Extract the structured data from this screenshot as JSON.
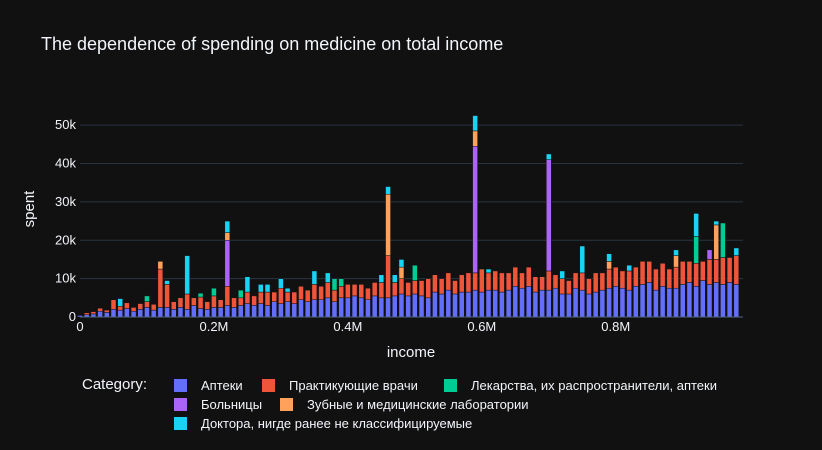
{
  "chart_data": {
    "type": "bar",
    "barmode": "stack",
    "title": "The dependence of spending on medicine on total income",
    "xlabel": "income",
    "ylabel": "spent",
    "xlim": [
      0,
      990000
    ],
    "ylim": [
      0,
      54000
    ],
    "x_ticks": [
      {
        "value": 0,
        "label": "0"
      },
      {
        "value": 200000,
        "label": "0.2M"
      },
      {
        "value": 400000,
        "label": "0.4M"
      },
      {
        "value": 600000,
        "label": "0.6M"
      },
      {
        "value": 800000,
        "label": "0.8M"
      }
    ],
    "y_ticks": [
      {
        "value": 0,
        "label": "0"
      },
      {
        "value": 10000,
        "label": "10k"
      },
      {
        "value": 20000,
        "label": "20k"
      },
      {
        "value": 30000,
        "label": "30k"
      },
      {
        "value": 40000,
        "label": "40k"
      },
      {
        "value": 50000,
        "label": "50k"
      }
    ],
    "grid": true,
    "legend_title": "Category:",
    "legend_position": "bottom",
    "bar_width": 9000,
    "x": [
      0,
      10000,
      20000,
      30000,
      40000,
      50000,
      60000,
      70000,
      80000,
      90000,
      100000,
      110000,
      120000,
      130000,
      140000,
      150000,
      160000,
      170000,
      180000,
      190000,
      200000,
      210000,
      220000,
      230000,
      240000,
      250000,
      260000,
      270000,
      280000,
      290000,
      300000,
      310000,
      320000,
      330000,
      340000,
      350000,
      360000,
      370000,
      380000,
      390000,
      400000,
      410000,
      420000,
      430000,
      440000,
      450000,
      460000,
      470000,
      480000,
      490000,
      500000,
      510000,
      520000,
      530000,
      540000,
      550000,
      560000,
      570000,
      580000,
      590000,
      600000,
      610000,
      620000,
      630000,
      640000,
      650000,
      660000,
      670000,
      680000,
      690000,
      700000,
      710000,
      720000,
      730000,
      740000,
      750000,
      760000,
      770000,
      780000,
      790000,
      800000,
      810000,
      820000,
      830000,
      840000,
      850000,
      860000,
      870000,
      880000,
      890000,
      900000,
      910000,
      920000,
      930000,
      940000,
      950000,
      960000,
      970000,
      980000
    ],
    "series": [
      {
        "name": "Аптеки",
        "color": "#636efa",
        "values": [
          400,
          600,
          800,
          1500,
          1200,
          2000,
          1800,
          2200,
          1500,
          2000,
          2500,
          1800,
          2500,
          2500,
          2000,
          2500,
          2000,
          3000,
          2200,
          2000,
          2500,
          2500,
          3000,
          2500,
          3000,
          3500,
          3000,
          3500,
          3000,
          4000,
          3500,
          4000,
          3500,
          4500,
          4000,
          4500,
          4500,
          5000,
          4000,
          5000,
          5000,
          5500,
          5000,
          4500,
          5500,
          5000,
          5000,
          5500,
          6000,
          5500,
          6000,
          5500,
          5000,
          6500,
          6000,
          7000,
          6000,
          6500,
          6500,
          7000,
          6500,
          7000,
          7000,
          6500,
          7000,
          8000,
          7500,
          8000,
          6500,
          7000,
          7000,
          7500,
          6000,
          6000,
          7500,
          7000,
          6000,
          6500,
          7000,
          7500,
          8000,
          7500,
          7000,
          8000,
          8500,
          9000,
          7000,
          8000,
          7500,
          7500,
          8500,
          9000,
          8000,
          9500,
          8500,
          9000,
          8500,
          9000,
          8500
        ]
      },
      {
        "name": "Практикующие врачи",
        "color": "#ef553b",
        "values": [
          0,
          500,
          600,
          800,
          600,
          2500,
          1000,
          1500,
          1000,
          1500,
          1500,
          1500,
          10000,
          6000,
          2000,
          2500,
          4000,
          2000,
          3000,
          2000,
          3000,
          2000,
          5000,
          2500,
          2000,
          3000,
          2500,
          3000,
          3500,
          2500,
          4000,
          2500,
          3000,
          3500,
          3000,
          4000,
          3500,
          4000,
          3000,
          3000,
          3500,
          3000,
          3500,
          3000,
          3500,
          4000,
          11000,
          3500,
          4000,
          3500,
          3500,
          4000,
          5000,
          4500,
          4000,
          4500,
          3500,
          4500,
          5000,
          4500,
          6000,
          4500,
          5000,
          5000,
          4500,
          5000,
          4000,
          5000,
          4000,
          3500,
          5000,
          3500,
          4000,
          3500,
          4000,
          4500,
          4000,
          5000,
          4500,
          5000,
          5000,
          4500,
          5000,
          5000,
          6000,
          5500,
          5500,
          6000,
          5000,
          5500,
          6000,
          5500,
          6000,
          5000,
          6500,
          6000,
          7000,
          6500,
          7500
        ]
      },
      {
        "name": "Лекарства, их распространители, аптеки",
        "color": "#00cc96",
        "values": [
          0,
          0,
          0,
          0,
          0,
          0,
          0,
          0,
          0,
          0,
          1500,
          0,
          0,
          0,
          0,
          0,
          0,
          0,
          1000,
          0,
          2000,
          0,
          0,
          0,
          2000,
          0,
          0,
          0,
          0,
          0,
          0,
          0,
          0,
          0,
          0,
          0,
          0,
          0,
          3000,
          2000,
          0,
          0,
          0,
          0,
          0,
          0,
          0,
          0,
          0,
          0,
          4000,
          0,
          0,
          0,
          0,
          0,
          0,
          0,
          0,
          0,
          0,
          0,
          0,
          0,
          0,
          0,
          0,
          0,
          0,
          0,
          0,
          0,
          0,
          0,
          0,
          0,
          0,
          0,
          0,
          0,
          0,
          0,
          0,
          0,
          0,
          0,
          0,
          0,
          0,
          0,
          0,
          0,
          7000,
          0,
          0,
          0,
          9000,
          0,
          0
        ]
      },
      {
        "name": "Больницы",
        "color": "#ab63fa",
        "values": [
          0,
          0,
          0,
          0,
          0,
          0,
          0,
          0,
          0,
          0,
          0,
          0,
          0,
          0,
          0,
          0,
          0,
          0,
          0,
          0,
          0,
          0,
          12000,
          0,
          0,
          0,
          0,
          0,
          0,
          0,
          0,
          0,
          0,
          0,
          0,
          0,
          0,
          0,
          0,
          0,
          0,
          0,
          0,
          0,
          0,
          0,
          0,
          0,
          0,
          0,
          0,
          0,
          0,
          0,
          0,
          0,
          0,
          0,
          0,
          33000,
          0,
          0,
          0,
          0,
          0,
          0,
          0,
          0,
          0,
          0,
          29000,
          0,
          0,
          0,
          0,
          0,
          0,
          0,
          0,
          0,
          0,
          0,
          0,
          0,
          0,
          0,
          0,
          0,
          0,
          0,
          0,
          0,
          0,
          0,
          2500,
          0,
          0,
          0,
          0
        ]
      },
      {
        "name": "Зубные и медицинские лаборатории",
        "color": "#ffa15a",
        "values": [
          0,
          0,
          0,
          0,
          0,
          0,
          0,
          0,
          0,
          0,
          0,
          0,
          2000,
          0,
          0,
          0,
          0,
          0,
          0,
          0,
          0,
          0,
          2000,
          0,
          0,
          0,
          0,
          0,
          0,
          0,
          0,
          0,
          0,
          0,
          0,
          0,
          0,
          0,
          0,
          0,
          0,
          0,
          0,
          0,
          0,
          0,
          16000,
          0,
          3000,
          0,
          0,
          0,
          0,
          0,
          0,
          0,
          0,
          0,
          0,
          4000,
          0,
          0,
          0,
          0,
          0,
          0,
          0,
          0,
          0,
          0,
          0,
          0,
          0,
          0,
          0,
          0,
          0,
          0,
          0,
          2000,
          0,
          0,
          0,
          0,
          0,
          0,
          0,
          0,
          0,
          3000,
          0,
          0,
          0,
          0,
          0,
          9000,
          0,
          0,
          0
        ]
      },
      {
        "name": "Доктора, нигде ранее не классифицируемые",
        "color": "#19d3f3",
        "values": [
          0,
          0,
          0,
          0,
          0,
          0,
          2000,
          0,
          0,
          0,
          0,
          0,
          0,
          1000,
          0,
          0,
          10000,
          0,
          0,
          0,
          0,
          0,
          3000,
          0,
          0,
          4000,
          0,
          2000,
          2000,
          0,
          2500,
          1000,
          0,
          0,
          0,
          3500,
          0,
          2500,
          0,
          0,
          0,
          0,
          0,
          0,
          0,
          2000,
          2000,
          2000,
          2000,
          0,
          0,
          0,
          0,
          0,
          0,
          0,
          0,
          0,
          0,
          4000,
          0,
          1000,
          0,
          0,
          0,
          0,
          0,
          0,
          0,
          0,
          1500,
          0,
          2000,
          0,
          0,
          7000,
          0,
          0,
          0,
          2000,
          0,
          0,
          1500,
          0,
          0,
          0,
          0,
          0,
          0,
          1500,
          0,
          0,
          6000,
          0,
          0,
          1000,
          0,
          0,
          2000
        ]
      }
    ]
  }
}
